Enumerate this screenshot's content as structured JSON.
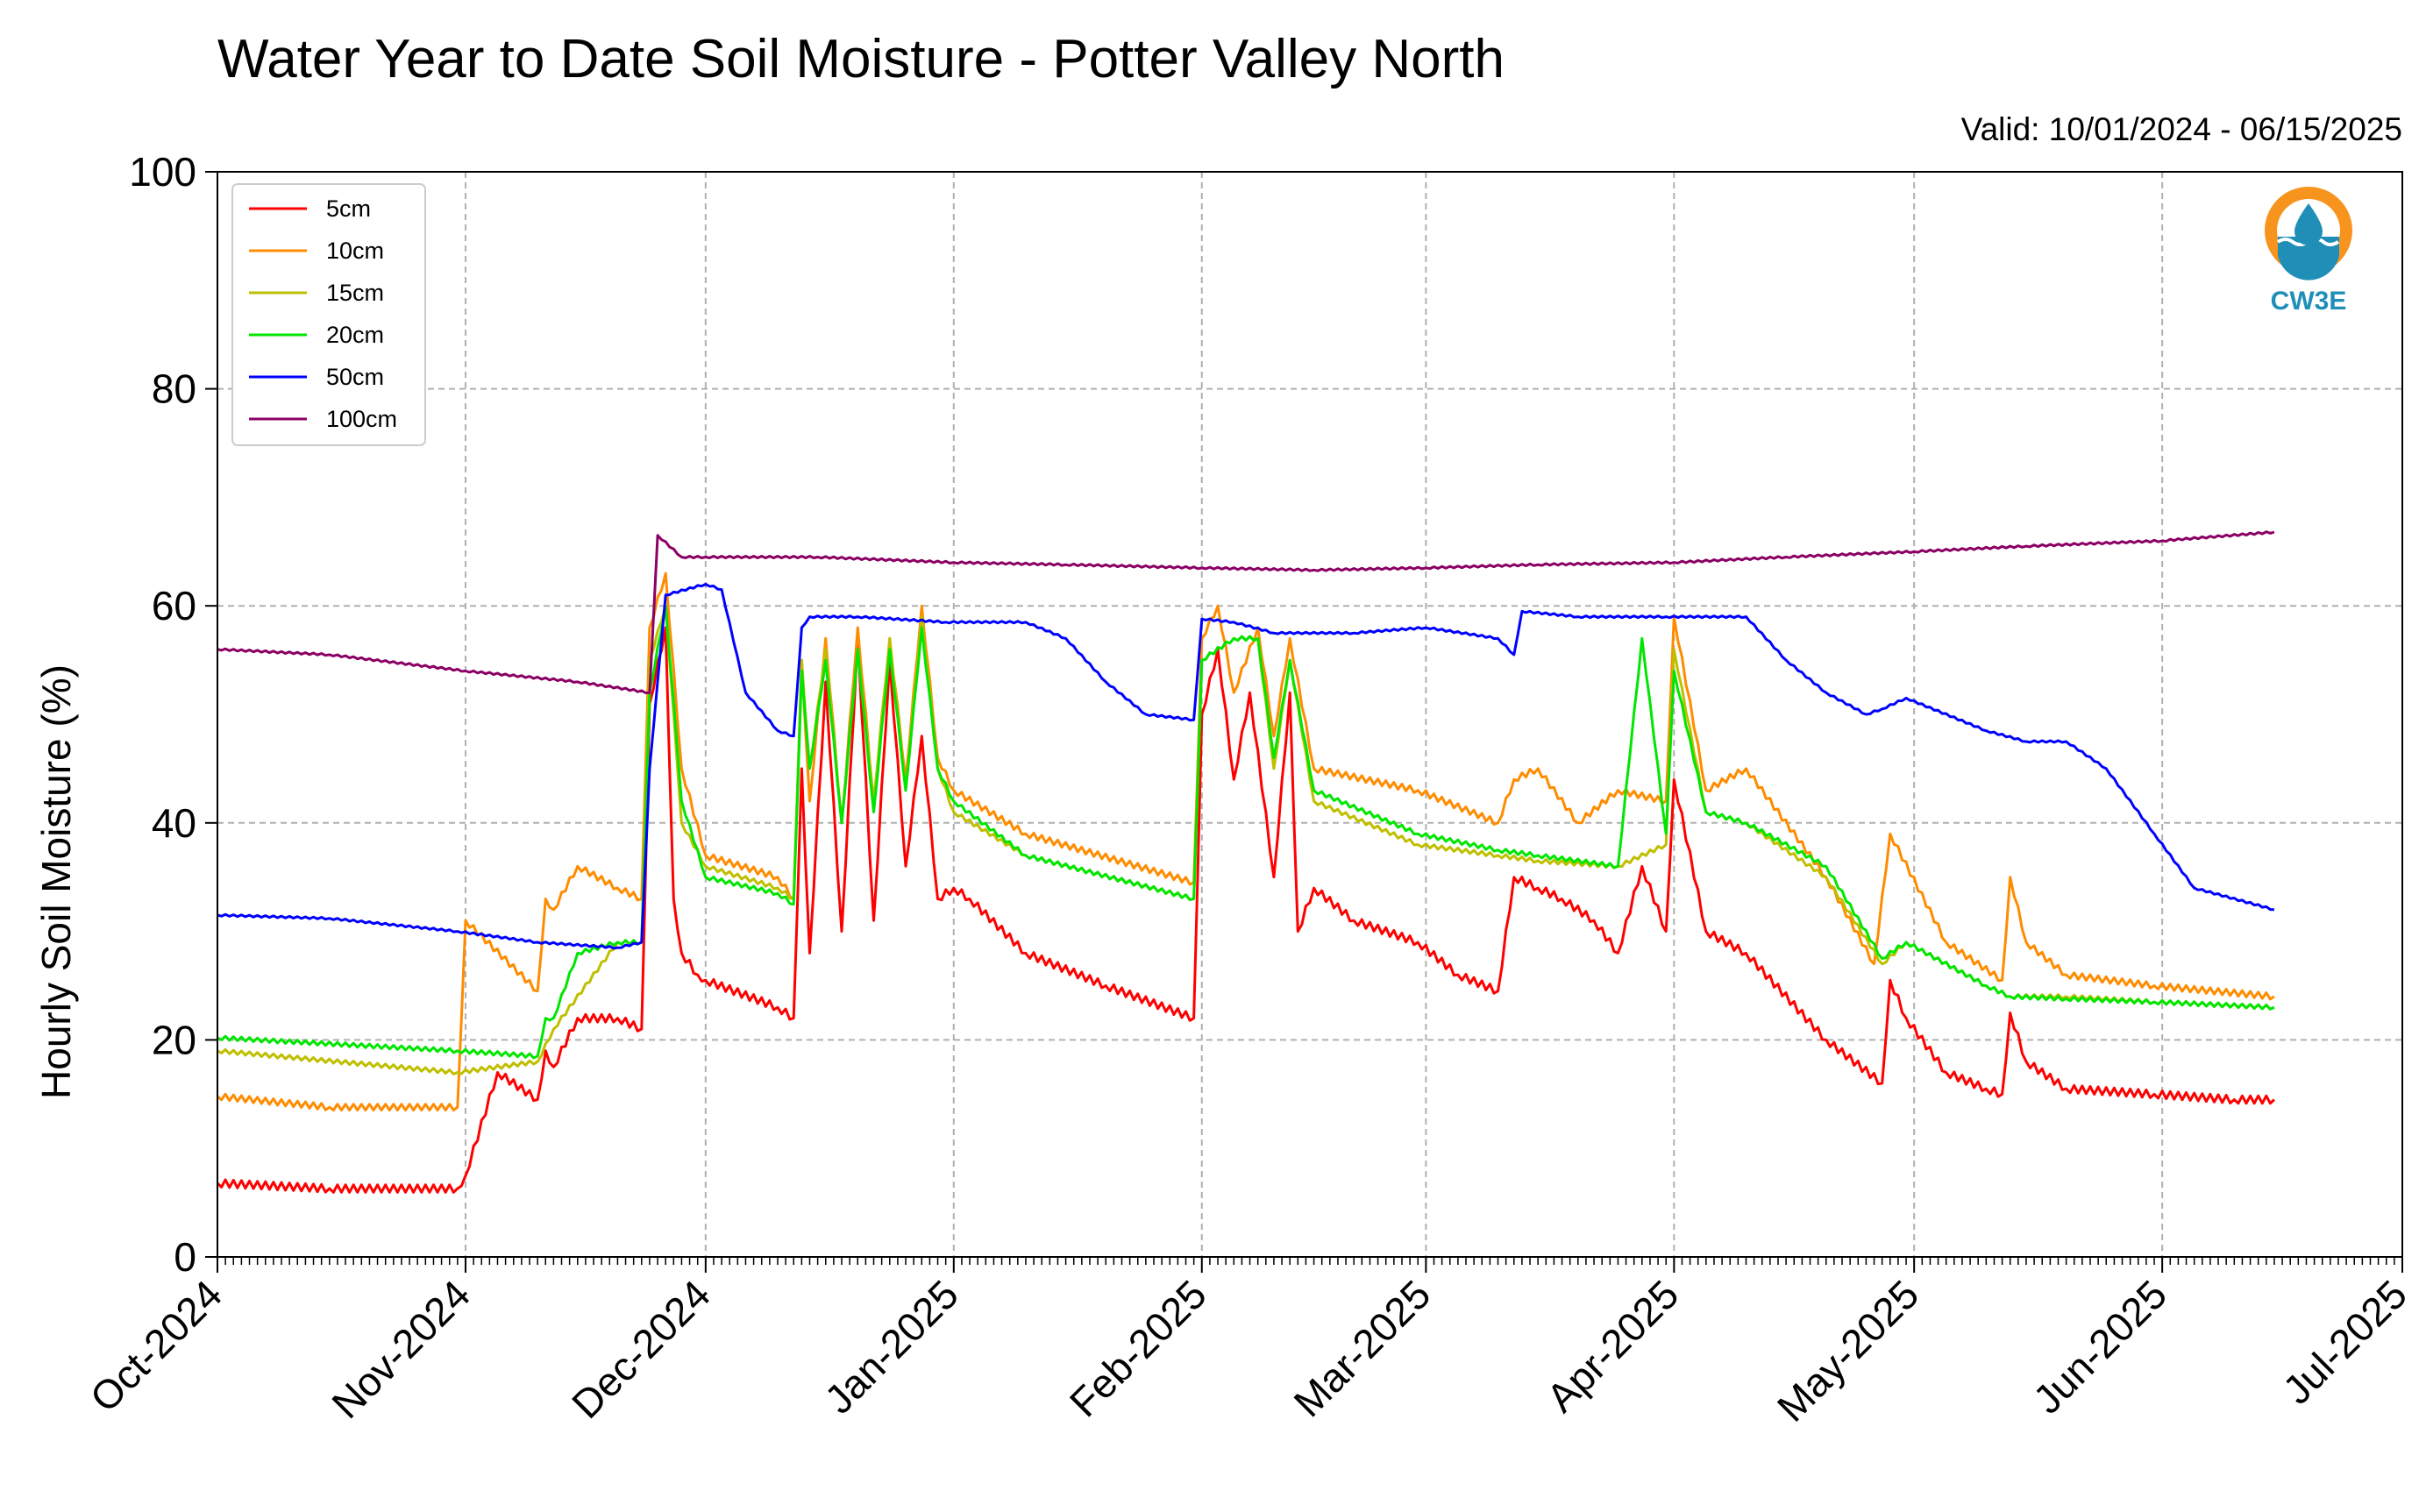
{
  "chart_data": {
    "type": "line",
    "title": "Water Year to Date Soil Moisture - Potter Valley North",
    "subtitle": "Valid: 10/01/2024 - 06/15/2025",
    "xlabel": "",
    "ylabel": "Hourly Soil Moisture (%)",
    "ylim": [
      0,
      100
    ],
    "xlim": [
      "2024-10-01",
      "2025-07-01"
    ],
    "yticks": [
      "0",
      "20",
      "40",
      "60",
      "80",
      "100"
    ],
    "xticks": [
      "Oct-2024",
      "Nov-2024",
      "Dec-2024",
      "Jan-2025",
      "Feb-2025",
      "Mar-2025",
      "Apr-2025",
      "May-2025",
      "Jun-2025",
      "Jul-2025"
    ],
    "grid": true,
    "legend_position": "top-left",
    "logo_text": "CW3E",
    "series": [
      {
        "name": "5cm",
        "color": "#ff0000",
        "x": [
          "2024-10-01",
          "2024-10-15",
          "2024-10-31",
          "2024-11-01",
          "2024-11-05",
          "2024-11-10",
          "2024-11-11",
          "2024-11-12",
          "2024-11-15",
          "2024-11-20",
          "2024-11-23",
          "2024-11-24",
          "2024-11-26",
          "2024-11-27",
          "2024-11-28",
          "2024-11-30",
          "2024-12-01",
          "2024-12-10",
          "2024-12-12",
          "2024-12-13",
          "2024-12-14",
          "2024-12-16",
          "2024-12-18",
          "2024-12-20",
          "2024-12-22",
          "2024-12-24",
          "2024-12-26",
          "2024-12-28",
          "2024-12-30",
          "2025-01-01",
          "2025-01-03",
          "2025-01-10",
          "2025-01-20",
          "2025-01-31",
          "2025-02-01",
          "2025-02-03",
          "2025-02-05",
          "2025-02-07",
          "2025-02-10",
          "2025-02-12",
          "2025-02-13",
          "2025-02-15",
          "2025-02-20",
          "2025-02-28",
          "2025-03-05",
          "2025-03-10",
          "2025-03-12",
          "2025-03-15",
          "2025-03-18",
          "2025-03-22",
          "2025-03-25",
          "2025-03-28",
          "2025-03-31",
          "2025-04-01",
          "2025-04-05",
          "2025-04-10",
          "2025-04-20",
          "2025-04-27",
          "2025-04-28",
          "2025-04-30",
          "2025-05-05",
          "2025-05-10",
          "2025-05-12",
          "2025-05-13",
          "2025-05-15",
          "2025-05-20",
          "2025-05-31",
          "2025-06-10",
          "2025-06-15"
        ],
        "values": [
          6.8,
          6.3,
          6.3,
          7.5,
          17.0,
          14.5,
          19.0,
          17.5,
          22.0,
          22.0,
          21.0,
          51.0,
          58.0,
          33.0,
          28.0,
          26.0,
          25.5,
          23.0,
          22.0,
          45.0,
          28.0,
          53.0,
          30.0,
          57.0,
          31.0,
          55.0,
          36.0,
          48.0,
          33.0,
          34.0,
          33.0,
          28.0,
          25.0,
          22.0,
          50.0,
          56.0,
          44.0,
          52.0,
          35.0,
          52.0,
          30.0,
          34.0,
          31.0,
          29.0,
          26.0,
          24.5,
          35.0,
          34.0,
          33.0,
          31.0,
          28.0,
          36.0,
          30.0,
          44.0,
          30.0,
          28.0,
          20.0,
          16.0,
          25.5,
          22.0,
          17.0,
          15.5,
          15.0,
          22.5,
          18.0,
          15.5,
          15.0,
          14.5,
          14.5
        ]
      },
      {
        "name": "10cm",
        "color": "#ff8c00",
        "x": [
          "2024-10-01",
          "2024-10-15",
          "2024-10-31",
          "2024-11-01",
          "2024-11-10",
          "2024-11-11",
          "2024-11-12",
          "2024-11-15",
          "2024-11-20",
          "2024-11-23",
          "2024-11-24",
          "2024-11-26",
          "2024-11-28",
          "2024-12-01",
          "2024-12-10",
          "2024-12-12",
          "2024-12-13",
          "2024-12-14",
          "2024-12-16",
          "2024-12-18",
          "2024-12-20",
          "2024-12-22",
          "2024-12-24",
          "2024-12-26",
          "2024-12-28",
          "2024-12-30",
          "2025-01-01",
          "2025-01-10",
          "2025-01-31",
          "2025-02-01",
          "2025-02-03",
          "2025-02-05",
          "2025-02-08",
          "2025-02-10",
          "2025-02-12",
          "2025-02-15",
          "2025-02-28",
          "2025-03-10",
          "2025-03-12",
          "2025-03-15",
          "2025-03-20",
          "2025-03-25",
          "2025-03-31",
          "2025-04-01",
          "2025-04-05",
          "2025-04-10",
          "2025-04-20",
          "2025-04-26",
          "2025-04-28",
          "2025-05-05",
          "2025-05-12",
          "2025-05-13",
          "2025-05-15",
          "2025-05-20",
          "2025-05-31",
          "2025-06-15"
        ],
        "values": [
          14.8,
          13.8,
          13.8,
          31.0,
          24.5,
          33.0,
          32.0,
          36.0,
          34.0,
          33.0,
          58.0,
          63.0,
          45.0,
          37.0,
          35.0,
          33.0,
          55.0,
          42.0,
          57.0,
          40.0,
          58.0,
          42.0,
          57.0,
          44.0,
          60.0,
          46.0,
          43.0,
          39.0,
          34.5,
          57.0,
          60.0,
          52.0,
          58.0,
          48.0,
          57.0,
          45.0,
          43.0,
          40.0,
          44.0,
          45.0,
          40.0,
          43.0,
          42.0,
          59.0,
          43.0,
          45.0,
          35.0,
          27.0,
          39.0,
          29.0,
          25.5,
          35.0,
          29.0,
          26.0,
          25.0,
          24.0
        ]
      },
      {
        "name": "15cm",
        "color": "#bfbf00",
        "x": [
          "2024-10-01",
          "2024-10-31",
          "2024-11-10",
          "2024-11-12",
          "2024-11-20",
          "2024-11-23",
          "2024-11-24",
          "2024-11-26",
          "2024-11-28",
          "2024-12-01",
          "2024-12-10",
          "2024-12-12",
          "2024-12-13",
          "2024-12-14",
          "2024-12-16",
          "2024-12-18",
          "2024-12-20",
          "2024-12-22",
          "2024-12-24",
          "2024-12-26",
          "2024-12-28",
          "2024-12-30",
          "2025-01-01",
          "2025-01-10",
          "2025-01-31",
          "2025-02-01",
          "2025-02-05",
          "2025-02-08",
          "2025-02-10",
          "2025-02-12",
          "2025-02-15",
          "2025-02-28",
          "2025-03-10",
          "2025-03-15",
          "2025-03-25",
          "2025-03-31",
          "2025-04-01",
          "2025-04-05",
          "2025-04-10",
          "2025-04-20",
          "2025-04-27",
          "2025-04-30",
          "2025-05-10",
          "2025-05-13",
          "2025-05-20",
          "2025-05-31",
          "2025-06-15"
        ],
        "values": [
          19.0,
          17.0,
          18.0,
          21.0,
          29.0,
          29.0,
          55.0,
          60.0,
          40.0,
          36.0,
          34.0,
          33.0,
          55.0,
          45.0,
          56.0,
          40.0,
          56.0,
          42.0,
          57.0,
          43.0,
          59.0,
          45.0,
          41.0,
          37.0,
          33.0,
          55.0,
          57.0,
          57.0,
          45.0,
          55.0,
          42.0,
          38.0,
          37.0,
          36.5,
          36.0,
          38.0,
          56.0,
          41.0,
          40.0,
          35.0,
          27.0,
          29.0,
          25.0,
          24.0,
          24.0,
          23.5,
          23.0
        ]
      },
      {
        "name": "20cm",
        "color": "#00e600",
        "x": [
          "2024-10-01",
          "2024-10-31",
          "2024-11-10",
          "2024-11-11",
          "2024-11-12",
          "2024-11-15",
          "2024-11-20",
          "2024-11-23",
          "2024-11-24",
          "2024-11-26",
          "2024-11-28",
          "2024-12-01",
          "2024-12-10",
          "2024-12-12",
          "2024-12-13",
          "2024-12-14",
          "2024-12-16",
          "2024-12-18",
          "2024-12-20",
          "2024-12-22",
          "2024-12-24",
          "2024-12-26",
          "2024-12-28",
          "2024-12-30",
          "2025-01-01",
          "2025-01-10",
          "2025-01-31",
          "2025-02-01",
          "2025-02-05",
          "2025-02-08",
          "2025-02-10",
          "2025-02-12",
          "2025-02-15",
          "2025-02-28",
          "2025-03-10",
          "2025-03-15",
          "2025-03-25",
          "2025-03-28",
          "2025-03-31",
          "2025-04-01",
          "2025-04-05",
          "2025-04-10",
          "2025-04-20",
          "2025-04-27",
          "2025-04-30",
          "2025-05-10",
          "2025-05-13",
          "2025-05-20",
          "2025-05-31",
          "2025-06-15"
        ],
        "values": [
          20.2,
          19.0,
          18.5,
          22.0,
          22.0,
          28.0,
          29.0,
          29.0,
          52.0,
          60.0,
          42.0,
          35.0,
          33.5,
          32.5,
          54.0,
          45.0,
          55.0,
          40.0,
          56.0,
          41.0,
          56.0,
          43.0,
          58.0,
          45.0,
          42.0,
          37.0,
          33.0,
          55.0,
          57.0,
          57.0,
          46.0,
          55.0,
          43.0,
          39.0,
          37.5,
          37.0,
          36.0,
          57.0,
          39.0,
          54.0,
          41.0,
          40.0,
          36.0,
          27.5,
          29.0,
          25.0,
          24.0,
          23.8,
          23.5,
          23.0
        ]
      },
      {
        "name": "50cm",
        "color": "#0000ff",
        "x": [
          "2024-10-01",
          "2024-10-15",
          "2024-10-31",
          "2024-11-10",
          "2024-11-20",
          "2024-11-23",
          "2024-11-24",
          "2024-11-26",
          "2024-12-01",
          "2024-12-03",
          "2024-12-06",
          "2024-12-10",
          "2024-12-12",
          "2024-12-13",
          "2024-12-14",
          "2024-12-20",
          "2024-12-31",
          "2025-01-10",
          "2025-01-15",
          "2025-01-20",
          "2025-01-25",
          "2025-01-31",
          "2025-02-01",
          "2025-02-05",
          "2025-02-10",
          "2025-02-20",
          "2025-03-01",
          "2025-03-10",
          "2025-03-12",
          "2025-03-13",
          "2025-03-20",
          "2025-03-31",
          "2025-04-10",
          "2025-04-15",
          "2025-04-20",
          "2025-04-25",
          "2025-04-27",
          "2025-04-30",
          "2025-05-10",
          "2025-05-15",
          "2025-05-20",
          "2025-05-25",
          "2025-05-31",
          "2025-06-05",
          "2025-06-15"
        ],
        "values": [
          31.5,
          31.2,
          30.0,
          29.0,
          28.5,
          29.0,
          45.0,
          61.0,
          62.0,
          61.5,
          52.0,
          48.5,
          48.0,
          58.0,
          59.0,
          59.0,
          58.5,
          58.5,
          57.0,
          53.0,
          50.0,
          49.5,
          58.8,
          58.5,
          57.5,
          57.5,
          58.0,
          57.0,
          55.5,
          59.5,
          59.0,
          59.0,
          59.0,
          55.0,
          52.0,
          50.0,
          50.5,
          51.5,
          48.5,
          47.5,
          47.5,
          45.0,
          39.0,
          34.0,
          32.0
        ]
      },
      {
        "name": "100cm",
        "color": "#8b0064",
        "x": [
          "2024-10-01",
          "2024-10-15",
          "2024-11-01",
          "2024-11-15",
          "2024-11-24",
          "2024-11-25",
          "2024-11-28",
          "2024-12-01",
          "2024-12-15",
          "2025-01-01",
          "2025-01-15",
          "2025-02-01",
          "2025-02-15",
          "2025-03-01",
          "2025-03-15",
          "2025-04-01",
          "2025-04-15",
          "2025-05-01",
          "2025-05-15",
          "2025-06-01",
          "2025-06-15"
        ],
        "values": [
          56.0,
          55.5,
          54.0,
          53.0,
          52.0,
          66.5,
          64.5,
          64.5,
          64.5,
          64.0,
          63.8,
          63.5,
          63.3,
          63.5,
          63.8,
          64.0,
          64.5,
          65.0,
          65.5,
          66.0,
          66.8
        ]
      }
    ]
  }
}
